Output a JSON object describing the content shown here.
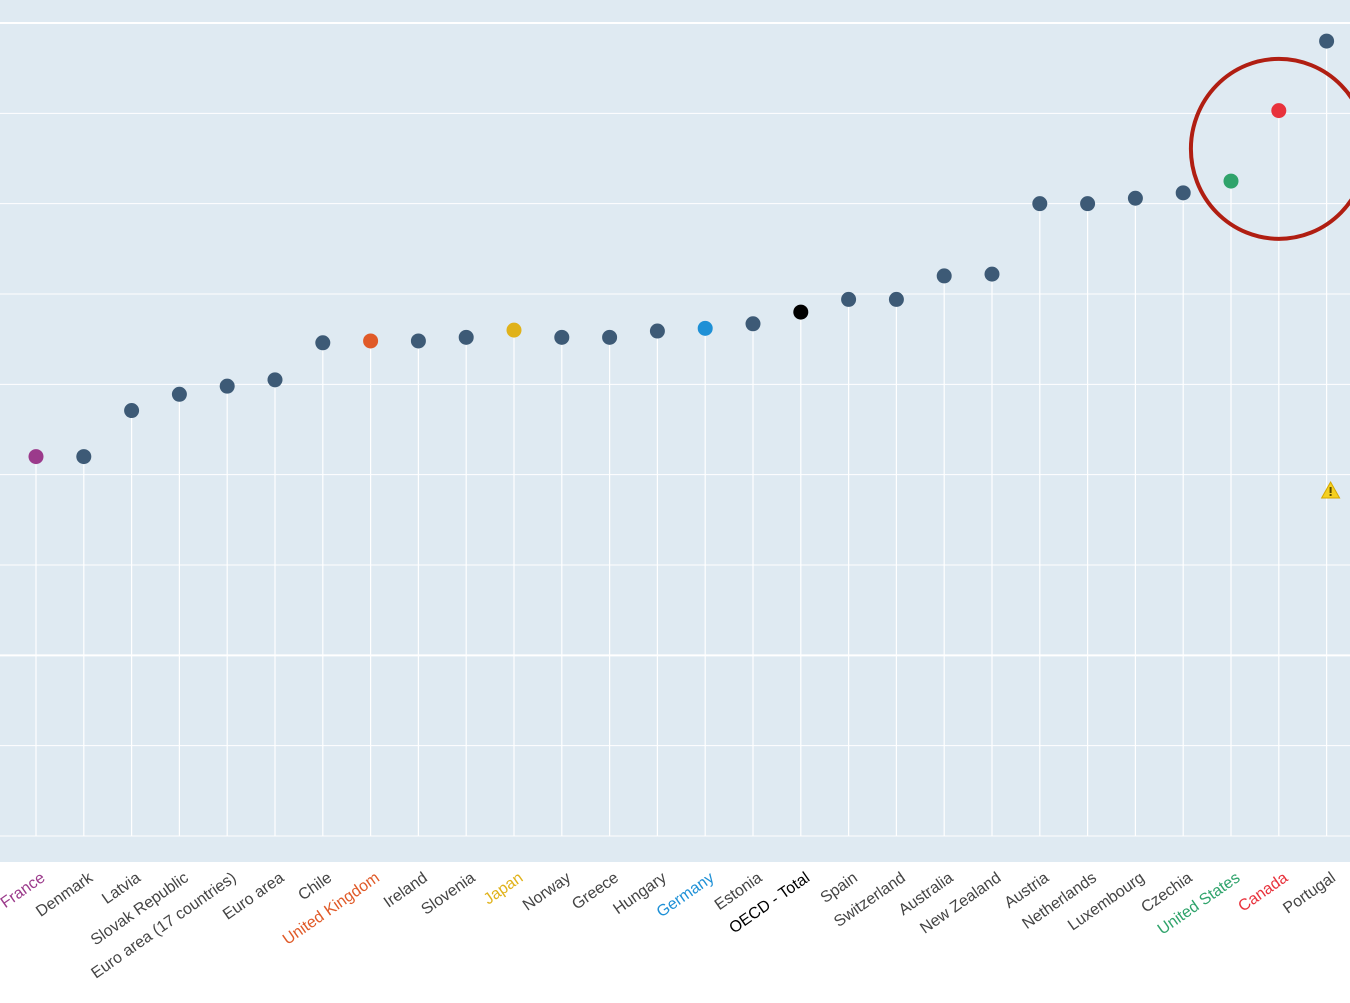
{
  "chart_data": {
    "type": "scatter",
    "title": "",
    "xlabel": "",
    "ylabel": "",
    "ylim": [
      0,
      9
    ],
    "grid": true,
    "legend": "none",
    "categories": [
      "France",
      "Denmark",
      "Latvia",
      "Slovak Republic",
      "Euro area (17 countries)",
      "Euro area",
      "Chile",
      "United Kingdom",
      "Ireland",
      "Slovenia",
      "Japan",
      "Norway",
      "Greece",
      "Hungary",
      "Germany",
      "Estonia",
      "OECD - Total",
      "Spain",
      "Switzerland",
      "Australia",
      "New Zealand",
      "Austria",
      "Netherlands",
      "Luxembourg",
      "Czechia",
      "United States",
      "Canada",
      "Portugal"
    ],
    "values": [
      4.2,
      4.2,
      4.71,
      4.89,
      4.98,
      5.05,
      5.46,
      5.48,
      5.48,
      5.52,
      5.6,
      5.52,
      5.52,
      5.59,
      5.62,
      5.67,
      5.8,
      5.94,
      5.94,
      6.2,
      6.22,
      7.0,
      7.0,
      7.06,
      7.12,
      7.25,
      8.03,
      8.8
    ],
    "highlight": {
      "France": "#9b3a8b",
      "United Kingdom": "#e05a28",
      "Japan": "#e0b21a",
      "Germany": "#1e90d6",
      "OECD - Total": "#000000",
      "United States": "#2fa36b",
      "Canada": "#e8323c"
    },
    "default_color": "#3d5a76",
    "default_label_color": "#444444",
    "background_color": "#dfeaf2",
    "annotation": {
      "type": "circle",
      "color": "#b01e12",
      "around": [
        "United States",
        "Canada"
      ]
    },
    "warning_marker": {
      "category": "Portugal",
      "color": "#f5d020",
      "icon": "warning-triangle-icon"
    }
  }
}
